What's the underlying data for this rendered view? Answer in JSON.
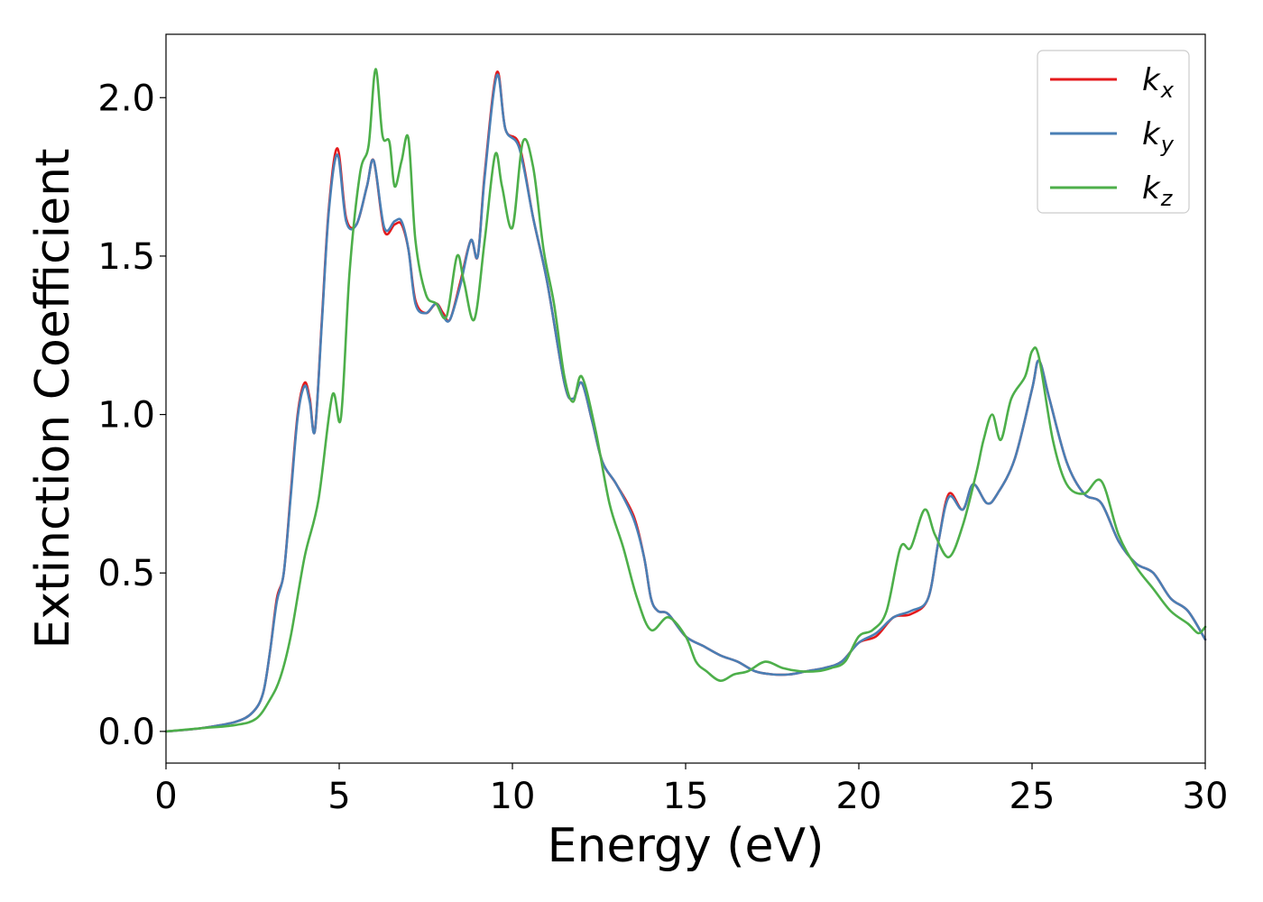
{
  "chart_data": {
    "type": "line",
    "title": "",
    "xlabel": "Energy (eV)",
    "ylabel": "Extinction Coefficient",
    "xlim": [
      0,
      30
    ],
    "ylim": [
      -0.1,
      2.2
    ],
    "xticks": [
      0,
      5,
      10,
      15,
      20,
      25,
      30
    ],
    "xtick_labels": [
      "0",
      "5",
      "10",
      "15",
      "20",
      "25",
      "30"
    ],
    "yticks": [
      0.0,
      0.5,
      1.0,
      1.5,
      2.0
    ],
    "ytick_labels": [
      "0.0",
      "0.5",
      "1.0",
      "1.5",
      "2.0"
    ],
    "grid": false,
    "legend_position": "top-right",
    "series": [
      {
        "name": "k_x",
        "legend_main": "k",
        "legend_sub": "x",
        "color": "#e41a1c",
        "x": [
          0,
          1,
          2,
          2.5,
          2.8,
          3.0,
          3.2,
          3.4,
          3.6,
          3.8,
          4.0,
          4.15,
          4.3,
          4.5,
          4.7,
          4.95,
          5.2,
          5.5,
          5.8,
          6.0,
          6.3,
          6.6,
          6.8,
          7.0,
          7.2,
          7.5,
          7.8,
          8.0,
          8.2,
          8.5,
          8.8,
          9.0,
          9.2,
          9.55,
          9.8,
          10.2,
          10.6,
          11.0,
          11.5,
          11.75,
          12.0,
          12.3,
          12.6,
          13.0,
          13.5,
          13.8,
          14.0,
          14.2,
          14.5,
          15.0,
          15.5,
          16.0,
          16.5,
          17.0,
          17.5,
          18.0,
          18.5,
          19.0,
          19.5,
          20.0,
          20.5,
          21.0,
          21.5,
          22.0,
          22.3,
          22.6,
          23.0,
          23.3,
          23.7,
          24.0,
          24.5,
          25.0,
          25.2,
          25.5,
          26.0,
          26.5,
          27.0,
          27.5,
          28.0,
          28.5,
          29.0,
          29.5,
          30.0
        ],
        "y": [
          0.0,
          0.01,
          0.03,
          0.06,
          0.12,
          0.25,
          0.42,
          0.5,
          0.75,
          1.0,
          1.1,
          1.05,
          0.95,
          1.3,
          1.65,
          1.84,
          1.62,
          1.6,
          1.72,
          1.8,
          1.58,
          1.6,
          1.6,
          1.52,
          1.36,
          1.32,
          1.35,
          1.32,
          1.3,
          1.42,
          1.55,
          1.5,
          1.76,
          2.08,
          1.9,
          1.85,
          1.62,
          1.42,
          1.1,
          1.05,
          1.1,
          0.98,
          0.85,
          0.78,
          0.68,
          0.55,
          0.42,
          0.38,
          0.37,
          0.3,
          0.27,
          0.24,
          0.22,
          0.19,
          0.18,
          0.18,
          0.19,
          0.2,
          0.22,
          0.28,
          0.3,
          0.36,
          0.37,
          0.42,
          0.6,
          0.75,
          0.7,
          0.78,
          0.72,
          0.75,
          0.86,
          1.08,
          1.17,
          1.05,
          0.85,
          0.75,
          0.72,
          0.6,
          0.53,
          0.5,
          0.42,
          0.38,
          0.29
        ]
      },
      {
        "name": "k_y",
        "legend_main": "k",
        "legend_sub": "y",
        "color": "#4a7fb5",
        "x": [
          0,
          1,
          2,
          2.5,
          2.8,
          3.0,
          3.2,
          3.4,
          3.6,
          3.8,
          4.0,
          4.15,
          4.3,
          4.5,
          4.7,
          4.95,
          5.2,
          5.5,
          5.8,
          6.0,
          6.3,
          6.6,
          6.8,
          7.0,
          7.2,
          7.5,
          7.8,
          8.0,
          8.2,
          8.5,
          8.8,
          9.0,
          9.2,
          9.55,
          9.8,
          10.2,
          10.6,
          11.0,
          11.5,
          11.75,
          12.0,
          12.3,
          12.6,
          13.0,
          13.5,
          13.8,
          14.0,
          14.2,
          14.5,
          15.0,
          15.5,
          16.0,
          16.5,
          17.0,
          17.5,
          18.0,
          18.5,
          19.0,
          19.5,
          20.0,
          20.5,
          21.0,
          21.5,
          22.0,
          22.3,
          22.6,
          23.0,
          23.3,
          23.7,
          24.0,
          24.5,
          25.0,
          25.2,
          25.5,
          26.0,
          26.5,
          27.0,
          27.5,
          28.0,
          28.5,
          29.0,
          29.5,
          30.0
        ],
        "y": [
          0.0,
          0.01,
          0.03,
          0.06,
          0.12,
          0.25,
          0.41,
          0.5,
          0.74,
          0.99,
          1.09,
          1.04,
          0.95,
          1.29,
          1.64,
          1.82,
          1.61,
          1.6,
          1.72,
          1.8,
          1.59,
          1.61,
          1.61,
          1.52,
          1.35,
          1.32,
          1.35,
          1.31,
          1.3,
          1.41,
          1.55,
          1.5,
          1.75,
          2.07,
          1.9,
          1.84,
          1.62,
          1.42,
          1.1,
          1.05,
          1.1,
          0.98,
          0.85,
          0.78,
          0.67,
          0.55,
          0.42,
          0.38,
          0.37,
          0.3,
          0.27,
          0.24,
          0.22,
          0.19,
          0.18,
          0.18,
          0.19,
          0.2,
          0.22,
          0.28,
          0.31,
          0.36,
          0.38,
          0.42,
          0.6,
          0.74,
          0.7,
          0.78,
          0.72,
          0.75,
          0.86,
          1.08,
          1.17,
          1.05,
          0.85,
          0.75,
          0.72,
          0.6,
          0.53,
          0.5,
          0.42,
          0.38,
          0.29
        ]
      },
      {
        "name": "k_z",
        "legend_main": "k",
        "legend_sub": "z",
        "color": "#4daf4a",
        "x": [
          0,
          1,
          2,
          2.6,
          3.0,
          3.3,
          3.6,
          4.0,
          4.4,
          4.8,
          5.05,
          5.3,
          5.6,
          5.85,
          6.05,
          6.25,
          6.45,
          6.6,
          6.8,
          7.0,
          7.2,
          7.5,
          7.8,
          8.1,
          8.4,
          8.6,
          8.9,
          9.2,
          9.5,
          9.7,
          10.0,
          10.3,
          10.6,
          10.9,
          11.2,
          11.5,
          11.75,
          12.0,
          12.4,
          12.8,
          13.2,
          13.6,
          14.0,
          14.5,
          15.0,
          15.3,
          15.6,
          16.0,
          16.4,
          16.8,
          17.3,
          17.8,
          18.3,
          18.8,
          19.2,
          19.6,
          20.0,
          20.4,
          20.8,
          21.2,
          21.5,
          21.9,
          22.2,
          22.6,
          23.0,
          23.4,
          23.6,
          23.85,
          24.1,
          24.4,
          24.8,
          25.0,
          25.2,
          25.6,
          26.0,
          26.5,
          27.0,
          27.5,
          28.0,
          28.5,
          29.0,
          29.5,
          29.8,
          30.0
        ],
        "y": [
          0.0,
          0.01,
          0.02,
          0.04,
          0.1,
          0.17,
          0.3,
          0.55,
          0.73,
          1.06,
          0.99,
          1.45,
          1.76,
          1.85,
          2.09,
          1.88,
          1.86,
          1.72,
          1.8,
          1.87,
          1.55,
          1.38,
          1.35,
          1.31,
          1.5,
          1.42,
          1.3,
          1.55,
          1.82,
          1.72,
          1.59,
          1.86,
          1.78,
          1.52,
          1.35,
          1.12,
          1.04,
          1.12,
          0.95,
          0.72,
          0.58,
          0.42,
          0.32,
          0.36,
          0.3,
          0.22,
          0.19,
          0.16,
          0.18,
          0.19,
          0.22,
          0.2,
          0.19,
          0.19,
          0.2,
          0.22,
          0.3,
          0.32,
          0.38,
          0.58,
          0.58,
          0.7,
          0.62,
          0.55,
          0.65,
          0.82,
          0.92,
          1.0,
          0.92,
          1.05,
          1.12,
          1.2,
          1.18,
          0.92,
          0.78,
          0.75,
          0.79,
          0.62,
          0.52,
          0.45,
          0.38,
          0.34,
          0.31,
          0.33
        ]
      }
    ]
  }
}
